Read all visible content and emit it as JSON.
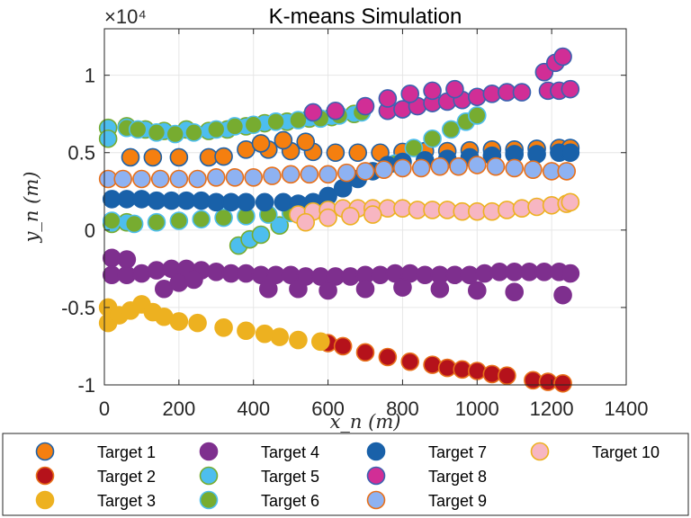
{
  "chart_data": {
    "type": "scatter",
    "title": "K-means Simulation",
    "xlabel": "x_n (m)",
    "ylabel": "y_n (m)",
    "xlim": [
      0,
      1400
    ],
    "ylim": [
      -10000,
      13000
    ],
    "y_exponent_label": "×10⁴",
    "x_ticks": [
      0,
      200,
      400,
      600,
      800,
      1000,
      1200,
      1400
    ],
    "x_tick_labels": [
      "0",
      "200",
      "400",
      "600",
      "800",
      "1000",
      "1200",
      "1400"
    ],
    "y_ticks": [
      -10000,
      -5000,
      0,
      5000,
      10000
    ],
    "y_tick_labels": [
      "-1",
      "-0.5",
      "0",
      "0.5",
      "1"
    ],
    "grid": true,
    "legend_position": "bottom-outside",
    "series": [
      {
        "name": "Target 1",
        "fill": "#F57F0F",
        "edge": "#1F62A8",
        "points": [
          [
            70,
            4700
          ],
          [
            130,
            4700
          ],
          [
            200,
            4700
          ],
          [
            280,
            4700
          ],
          [
            320,
            4750
          ],
          [
            380,
            5200
          ],
          [
            440,
            5200
          ],
          [
            500,
            5100
          ],
          [
            560,
            5050
          ],
          [
            620,
            5000
          ],
          [
            680,
            5000
          ],
          [
            740,
            5000
          ],
          [
            800,
            5050
          ],
          [
            860,
            5100
          ],
          [
            920,
            5100
          ],
          [
            980,
            5150
          ],
          [
            1040,
            5200
          ],
          [
            1100,
            5200
          ],
          [
            1160,
            5250
          ],
          [
            1220,
            5300
          ],
          [
            1250,
            5300
          ],
          [
            420,
            5600
          ],
          [
            480,
            5800
          ],
          [
            540,
            5700
          ]
        ]
      },
      {
        "name": "Target 2",
        "fill": "#B5121B",
        "edge": "#E8701A",
        "points": [
          [
            600,
            -7300
          ],
          [
            640,
            -7500
          ],
          [
            700,
            -7900
          ],
          [
            760,
            -8200
          ],
          [
            820,
            -8500
          ],
          [
            880,
            -8700
          ],
          [
            920,
            -8900
          ],
          [
            960,
            -9000
          ],
          [
            1000,
            -9100
          ],
          [
            1040,
            -9300
          ],
          [
            1080,
            -9400
          ],
          [
            1150,
            -9700
          ],
          [
            1190,
            -9800
          ],
          [
            1230,
            -9900
          ]
        ]
      },
      {
        "name": "Target 3",
        "fill": "#EDB120",
        "edge": "#EDB120",
        "points": [
          [
            10,
            -5000
          ],
          [
            10,
            -6000
          ],
          [
            40,
            -5500
          ],
          [
            70,
            -5200
          ],
          [
            100,
            -4800
          ],
          [
            130,
            -5300
          ],
          [
            160,
            -5600
          ],
          [
            200,
            -5900
          ],
          [
            250,
            -6000
          ],
          [
            320,
            -6300
          ],
          [
            380,
            -6500
          ],
          [
            430,
            -6700
          ],
          [
            470,
            -6900
          ],
          [
            520,
            -7100
          ],
          [
            580,
            -7200
          ]
        ]
      },
      {
        "name": "Target 4",
        "fill": "#7E2F8E",
        "edge": "#7E2F8E",
        "points": [
          [
            20,
            -1800
          ],
          [
            60,
            -1900
          ],
          [
            20,
            -2900
          ],
          [
            60,
            -2900
          ],
          [
            100,
            -2800
          ],
          [
            140,
            -2600
          ],
          [
            180,
            -2500
          ],
          [
            220,
            -2500
          ],
          [
            260,
            -2600
          ],
          [
            300,
            -2700
          ],
          [
            340,
            -2800
          ],
          [
            380,
            -2800
          ],
          [
            420,
            -2900
          ],
          [
            460,
            -2900
          ],
          [
            500,
            -2900
          ],
          [
            540,
            -3000
          ],
          [
            580,
            -3000
          ],
          [
            620,
            -3000
          ],
          [
            660,
            -3000
          ],
          [
            700,
            -2900
          ],
          [
            740,
            -2900
          ],
          [
            780,
            -2800
          ],
          [
            820,
            -2800
          ],
          [
            860,
            -2900
          ],
          [
            900,
            -2900
          ],
          [
            940,
            -2900
          ],
          [
            980,
            -2900
          ],
          [
            1020,
            -2800
          ],
          [
            1060,
            -2700
          ],
          [
            1100,
            -2700
          ],
          [
            1140,
            -2700
          ],
          [
            1180,
            -2700
          ],
          [
            1220,
            -2700
          ],
          [
            1250,
            -2800
          ],
          [
            160,
            -3800
          ],
          [
            200,
            -3400
          ],
          [
            240,
            -3200
          ],
          [
            440,
            -3800
          ],
          [
            520,
            -3800
          ],
          [
            600,
            -3900
          ],
          [
            700,
            -3800
          ],
          [
            800,
            -3700
          ],
          [
            900,
            -3800
          ],
          [
            1000,
            -3900
          ],
          [
            1100,
            -4000
          ],
          [
            1230,
            -4200
          ]
        ]
      },
      {
        "name": "Target 5",
        "fill": "#4DBEEE",
        "edge": "#77AC30",
        "points": [
          [
            10,
            6600
          ],
          [
            10,
            5900
          ],
          [
            60,
            6700
          ],
          [
            110,
            6500
          ],
          [
            160,
            6400
          ],
          [
            220,
            6500
          ],
          [
            280,
            6400
          ],
          [
            330,
            6500
          ],
          [
            380,
            6700
          ],
          [
            430,
            6900
          ],
          [
            490,
            7000
          ],
          [
            550,
            7200
          ],
          [
            610,
            7300
          ],
          [
            670,
            7500
          ],
          [
            20,
            400
          ],
          [
            60,
            500
          ],
          [
            360,
            -1000
          ],
          [
            390,
            -600
          ],
          [
            420,
            -300
          ],
          [
            470,
            300
          ]
        ]
      },
      {
        "name": "Target 6",
        "fill": "#77AC30",
        "edge": "#4DBEEE",
        "points": [
          [
            20,
            600
          ],
          [
            60,
            6600
          ],
          [
            90,
            6500
          ],
          [
            140,
            6300
          ],
          [
            190,
            6200
          ],
          [
            240,
            6300
          ],
          [
            300,
            6500
          ],
          [
            350,
            6700
          ],
          [
            400,
            6800
          ],
          [
            460,
            7000
          ],
          [
            520,
            7100
          ],
          [
            580,
            7200
          ],
          [
            630,
            7400
          ],
          [
            690,
            7600
          ],
          [
            780,
            4300
          ],
          [
            830,
            5300
          ],
          [
            880,
            5900
          ],
          [
            930,
            6500
          ],
          [
            970,
            7000
          ],
          [
            1000,
            7400
          ],
          [
            80,
            400
          ],
          [
            140,
            500
          ],
          [
            200,
            600
          ],
          [
            260,
            700
          ],
          [
            320,
            800
          ],
          [
            380,
            900
          ],
          [
            440,
            1000
          ],
          [
            500,
            1100
          ]
        ]
      },
      {
        "name": "Target 7",
        "fill": "#1961A9",
        "edge": "#1961A9",
        "points": [
          [
            20,
            2000
          ],
          [
            60,
            2000
          ],
          [
            100,
            2000
          ],
          [
            140,
            1900
          ],
          [
            180,
            1900
          ],
          [
            220,
            1900
          ],
          [
            260,
            1900
          ],
          [
            300,
            1800
          ],
          [
            340,
            1800
          ],
          [
            380,
            1800
          ],
          [
            430,
            1800
          ],
          [
            480,
            1800
          ],
          [
            520,
            1700
          ],
          [
            560,
            1800
          ],
          [
            600,
            2200
          ],
          [
            640,
            2700
          ],
          [
            680,
            3300
          ],
          [
            720,
            3800
          ],
          [
            760,
            4200
          ],
          [
            800,
            4400
          ],
          [
            860,
            4500
          ],
          [
            920,
            4600
          ],
          [
            980,
            4700
          ],
          [
            1040,
            4800
          ],
          [
            1100,
            4900
          ],
          [
            1160,
            4900
          ],
          [
            1220,
            5000
          ],
          [
            1250,
            5000
          ]
        ]
      },
      {
        "name": "Target 8",
        "fill": "#D12E96",
        "edge": "#3A62B0",
        "points": [
          [
            760,
            7700
          ],
          [
            800,
            7800
          ],
          [
            840,
            8000
          ],
          [
            880,
            8200
          ],
          [
            920,
            8300
          ],
          [
            960,
            8400
          ],
          [
            1000,
            8600
          ],
          [
            1040,
            8800
          ],
          [
            1080,
            8900
          ],
          [
            1120,
            8900
          ],
          [
            1180,
            10200
          ],
          [
            1210,
            10800
          ],
          [
            1230,
            11200
          ],
          [
            1190,
            9000
          ],
          [
            1220,
            9000
          ],
          [
            1250,
            9100
          ],
          [
            560,
            7600
          ],
          [
            620,
            7700
          ],
          [
            700,
            8000
          ],
          [
            760,
            8500
          ],
          [
            820,
            8800
          ],
          [
            880,
            9000
          ],
          [
            940,
            9100
          ]
        ]
      },
      {
        "name": "Target 9",
        "fill": "#8EB2F2",
        "edge": "#E8701A",
        "points": [
          [
            10,
            3300
          ],
          [
            50,
            3300
          ],
          [
            100,
            3300
          ],
          [
            150,
            3300
          ],
          [
            200,
            3300
          ],
          [
            250,
            3300
          ],
          [
            300,
            3400
          ],
          [
            350,
            3400
          ],
          [
            400,
            3400
          ],
          [
            450,
            3500
          ],
          [
            500,
            3600
          ],
          [
            550,
            3600
          ],
          [
            600,
            3600
          ],
          [
            650,
            3700
          ],
          [
            700,
            3800
          ],
          [
            750,
            3900
          ],
          [
            800,
            4000
          ],
          [
            850,
            4000
          ],
          [
            900,
            4100
          ],
          [
            950,
            4100
          ],
          [
            1000,
            4200
          ],
          [
            1050,
            4100
          ],
          [
            1100,
            4000
          ],
          [
            1150,
            3900
          ],
          [
            1200,
            3800
          ],
          [
            1240,
            3800
          ]
        ]
      },
      {
        "name": "Target 10",
        "fill": "#F7B6C2",
        "edge": "#EDB120",
        "points": [
          [
            520,
            1000
          ],
          [
            560,
            1200
          ],
          [
            600,
            1300
          ],
          [
            640,
            1400
          ],
          [
            680,
            1400
          ],
          [
            720,
            1400
          ],
          [
            760,
            1400
          ],
          [
            800,
            1400
          ],
          [
            840,
            1300
          ],
          [
            880,
            1300
          ],
          [
            920,
            1300
          ],
          [
            960,
            1200
          ],
          [
            1000,
            1200
          ],
          [
            1040,
            1200
          ],
          [
            1080,
            1300
          ],
          [
            1120,
            1400
          ],
          [
            1160,
            1500
          ],
          [
            1200,
            1600
          ],
          [
            1240,
            1700
          ],
          [
            1250,
            1800
          ],
          [
            540,
            500
          ],
          [
            600,
            800
          ],
          [
            660,
            900
          ],
          [
            720,
            1000
          ]
        ]
      }
    ]
  }
}
